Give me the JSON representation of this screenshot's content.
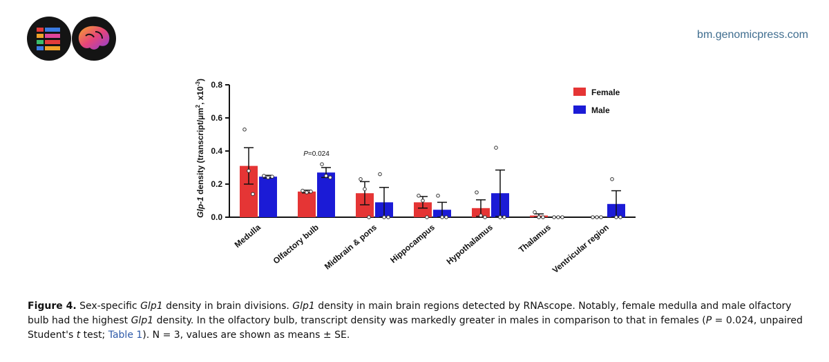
{
  "header": {
    "site_url": "bm.genomicpress.com"
  },
  "colors": {
    "female": "#e53535",
    "male": "#1b1bd6",
    "axis": "#111111",
    "logo_dark": "#141414",
    "link": "#2d59a8"
  },
  "icons": {
    "logo_left": "genomic-press-tables-logo",
    "logo_right": "brain-logo"
  },
  "chart_data": {
    "type": "bar",
    "ylabel_prefix": "Glp-1",
    "ylabel_main": " density (transcript/µm",
    "ylabel_sup1": "2",
    "ylabel_mid": ", x10",
    "ylabel_sup2": "-3",
    "ylabel_end": ")",
    "ylim": [
      0,
      0.8
    ],
    "yticks": [
      "0.0",
      "0.2",
      "0.4",
      "0.6",
      "0.8"
    ],
    "ytick_values": [
      0,
      0.2,
      0.4,
      0.6,
      0.8
    ],
    "categories": [
      "Medulla",
      "Olfactory bulb",
      "Midbrain & pons",
      "Hippocampus",
      "Hypothalamus",
      "Thalamus",
      "Ventricular region"
    ],
    "legend_position": "top-right",
    "series": [
      {
        "name": "Female",
        "values": [
          0.31,
          0.155,
          0.145,
          0.09,
          0.055,
          0.01,
          0.0
        ],
        "se": [
          0.11,
          0.008,
          0.07,
          0.035,
          0.05,
          0.01,
          0.0
        ],
        "points": [
          [
            0.53,
            0.28,
            0.14
          ],
          [
            0.16,
            0.15,
            0.155
          ],
          [
            0.23,
            0.17,
            0.0
          ],
          [
            0.13,
            0.1,
            0.0
          ],
          [
            0.15,
            0.01,
            0.0
          ],
          [
            0.03,
            0.0,
            0.0
          ],
          [
            0.0,
            0.0,
            0.0
          ]
        ]
      },
      {
        "name": "Male",
        "values": [
          0.245,
          0.27,
          0.09,
          0.045,
          0.145,
          0.0,
          0.08
        ],
        "se": [
          0.008,
          0.03,
          0.09,
          0.045,
          0.14,
          0.0,
          0.08
        ],
        "points": [
          [
            0.25,
            0.24,
            0.245
          ],
          [
            0.32,
            0.25,
            0.24
          ],
          [
            0.26,
            0.0,
            0.0
          ],
          [
            0.13,
            0.0,
            0.0
          ],
          [
            0.42,
            0.0,
            0.0
          ],
          [
            0.0,
            0.0,
            0.0
          ],
          [
            0.23,
            0.0,
            0.0
          ]
        ]
      }
    ],
    "annotation": {
      "category_index": 1,
      "label_p": "P",
      "label_rest": "=0.024"
    }
  },
  "caption": {
    "label": "Figure 4.",
    "t1": " Sex-specific ",
    "gene1": "Glp1",
    "t2": " density in brain divisions. ",
    "gene2": "Glp1",
    "t3": " density in main brain regions detected by RNAscope. Notably, female medulla and male olfactory bulb had the highest ",
    "gene3": "Glp1",
    "t4": " density. In the olfactory bulb, transcript density was markedly greater in males in comparison to that in females (",
    "p_italic": "P",
    "t5": " = 0.024, unpaired Student's ",
    "t_italic": "t",
    "t6": " test; ",
    "table_link": "Table 1",
    "t7": "). N = 3, values are shown as means ± SE."
  }
}
